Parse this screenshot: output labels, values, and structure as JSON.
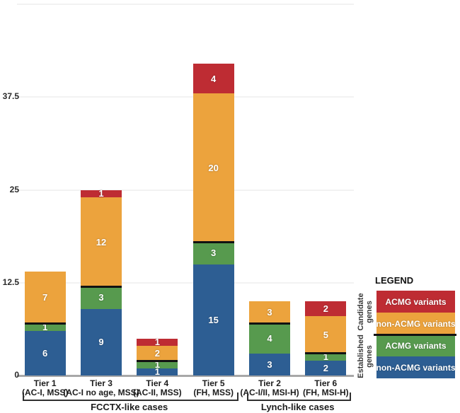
{
  "chart_data": {
    "type": "bar",
    "stacked": true,
    "title": "",
    "xlabel": "",
    "ylabel": "",
    "categories": [
      {
        "label": "Tier 1",
        "sublabel": "(AC-I, MSS)"
      },
      {
        "label": "Tier 3",
        "sublabel": "(AC-I no age, MSS)"
      },
      {
        "label": "Tier 4",
        "sublabel": "(AC-II, MSS)"
      },
      {
        "label": "Tier 5",
        "sublabel": "(FH, MSS)"
      },
      {
        "label": "Tier 2",
        "sublabel": "(AC-I/II, MSI-H)"
      },
      {
        "label": "Tier 6",
        "sublabel": "(FH, MSI-H)"
      }
    ],
    "series": [
      {
        "name": "Established genes - non-ACMG variants",
        "color": "#2D5E93",
        "values": [
          6,
          9,
          1,
          15,
          3,
          2
        ]
      },
      {
        "name": "Established genes - ACMG variants",
        "color": "#579A4E",
        "values": [
          1,
          3,
          1,
          3,
          4,
          1
        ]
      },
      {
        "name": "Candidate genes - non-ACMG variants",
        "color": "#ECA33D",
        "values": [
          7,
          12,
          2,
          20,
          3,
          5
        ]
      },
      {
        "name": "Candidate genes - ACMG variants",
        "color": "#BE2C33",
        "values": [
          0,
          1,
          1,
          4,
          0,
          2
        ]
      }
    ],
    "divider_after_series_index": 1,
    "divider_color": "#121212",
    "groups": [
      {
        "label": "FCCTX-like cases",
        "from": 0,
        "to": 3
      },
      {
        "label": "Lynch-like cases",
        "from": 4,
        "to": 5
      }
    ],
    "yticks": [
      0,
      12.5,
      25,
      37.5
    ],
    "ytick_labels": [
      "0",
      "12.5",
      "25",
      "37.5"
    ],
    "ymax_gridline": 50,
    "ylim": [
      0,
      50
    ],
    "grid": true,
    "legend_position": "right"
  },
  "legend": {
    "title": "LEGEND",
    "groups": [
      {
        "label": "Candidate genes"
      },
      {
        "label": "Established genes"
      }
    ],
    "entries": [
      {
        "label": "ACMG variants",
        "color": "#BE2C33",
        "group": "Candidate genes"
      },
      {
        "label": "non-ACMG variants",
        "color": "#ECA33D",
        "group": "Candidate genes"
      },
      {
        "label": "ACMG variants",
        "color": "#579A4E",
        "group": "Established genes"
      },
      {
        "label": "non-ACMG variants",
        "color": "#2D5E93",
        "group": "Established genes"
      }
    ]
  }
}
